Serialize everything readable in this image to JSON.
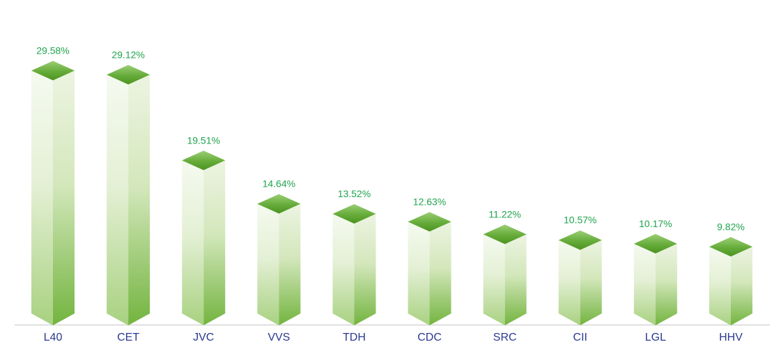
{
  "window": {
    "background": "#FFFFFF"
  },
  "chart_data": {
    "type": "bar",
    "variant": "3d-column",
    "title": "",
    "xlabel": "",
    "ylabel": "",
    "categories": [
      "L40",
      "CET",
      "JVC",
      "VVS",
      "TDH",
      "CDC",
      "SRC",
      "CII",
      "LGL",
      "HHV"
    ],
    "values": [
      29.58,
      29.12,
      19.51,
      14.64,
      13.52,
      12.63,
      11.22,
      10.57,
      10.17,
      9.82
    ],
    "value_labels": [
      "29.58%",
      "29.12%",
      "19.51%",
      "14.64%",
      "13.52%",
      "12.63%",
      "11.22%",
      "10.57%",
      "10.17%",
      "9.82%"
    ],
    "unit": "%",
    "ylim": [
      0,
      36.4
    ],
    "grid": false,
    "legend": "none",
    "axis": {
      "x_baseline_visible": true
    },
    "colors": {
      "background": "#FFFFFF",
      "value_label": "#1FA44E",
      "category_label": "#2B3990",
      "axis_line": "#D6D6D6",
      "bar_top_start": "#9CCE75",
      "bar_top_mid": "#66AC3A",
      "bar_top_end": "#4B9320",
      "bar_left_start": "#F5FAF0",
      "bar_left_mid": "#E4F0D5",
      "bar_left_end": "#A8D180",
      "bar_right_start": "#EDF4E2",
      "bar_right_mid": "#D3E7BB",
      "bar_right_end": "#73B43F"
    }
  }
}
